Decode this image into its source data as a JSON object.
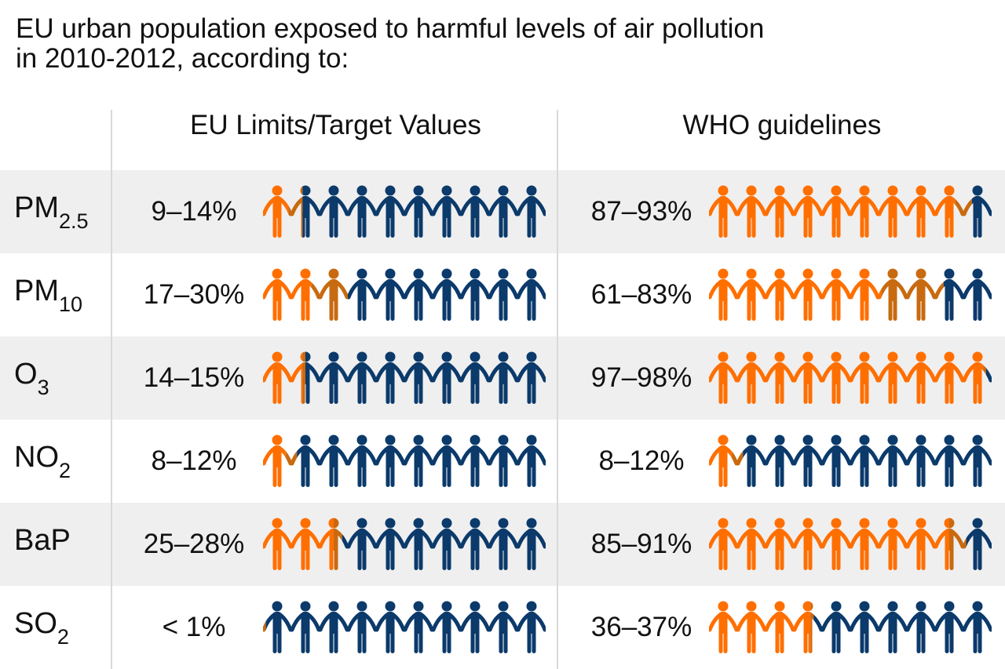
{
  "title": {
    "line1": "EU urban population exposed to harmful levels of air pollution",
    "line2": "in 2010-2012, according to:"
  },
  "colors": {
    "exposed": "#ff6f00",
    "range": "#c86a10",
    "not_exposed": "#0b3a6b",
    "shade": "#efefef"
  },
  "chart_data": {
    "type": "table",
    "columns": [
      "EU Limits/Target Values",
      "WHO guidelines"
    ],
    "figures_per_row": 10,
    "rows": [
      {
        "pollutant": "PM",
        "sub": "2.5",
        "eu_label": "9–14%",
        "eu": [
          9,
          14
        ],
        "who_label": "87–93%",
        "who": [
          87,
          93
        ]
      },
      {
        "pollutant": "PM",
        "sub": "10",
        "eu_label": "17–30%",
        "eu": [
          17,
          30
        ],
        "who_label": "61–83%",
        "who": [
          61,
          83
        ]
      },
      {
        "pollutant": "O",
        "sub": "3",
        "eu_label": "14–15%",
        "eu": [
          14,
          15
        ],
        "who_label": "97–98%",
        "who": [
          97,
          98
        ]
      },
      {
        "pollutant": "NO",
        "sub": "2",
        "eu_label": "8–12%",
        "eu": [
          8,
          12
        ],
        "who_label": "8–12%",
        "who": [
          8,
          12
        ]
      },
      {
        "pollutant": "BaP",
        "sub": "",
        "eu_label": "25–28%",
        "eu": [
          25,
          28
        ],
        "who_label": "85–91%",
        "who": [
          85,
          91
        ]
      },
      {
        "pollutant": "SO",
        "sub": "2",
        "eu_label": "< 1%",
        "eu": [
          0,
          1
        ],
        "who_label": "36–37%",
        "who": [
          36,
          37
        ]
      }
    ]
  }
}
